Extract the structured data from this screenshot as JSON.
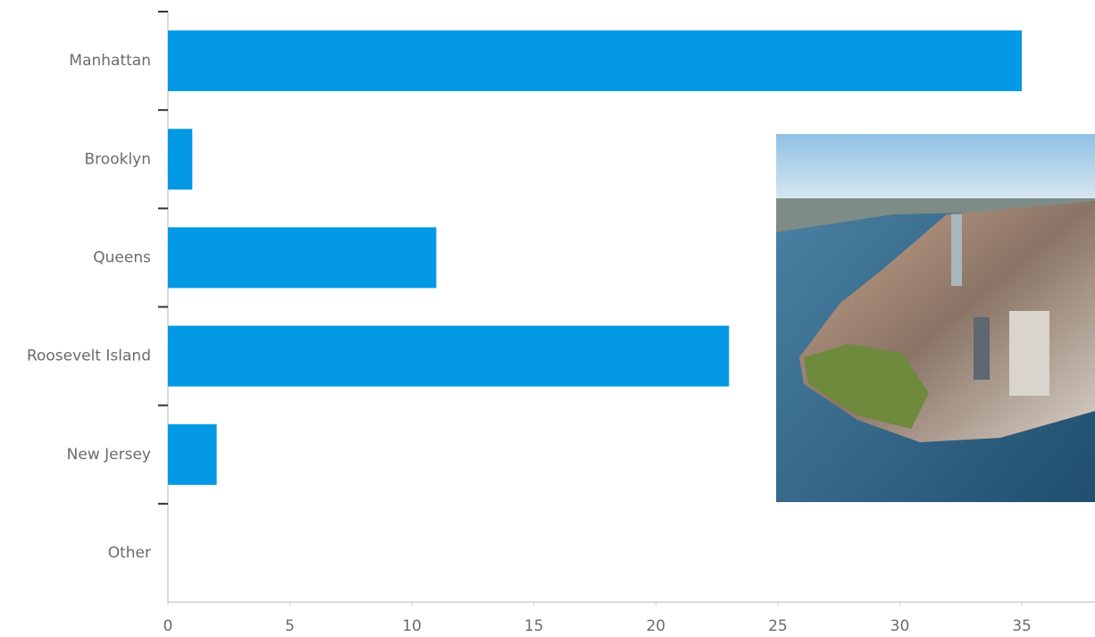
{
  "chart_data": {
    "type": "barh",
    "categories": [
      "Manhattan",
      "Brooklyn",
      "Queens",
      "Roosevelt Island",
      "New Jersey",
      "Other"
    ],
    "values": [
      35,
      1,
      11,
      23,
      2,
      0
    ],
    "color": "#0399e4",
    "xlim": [
      0,
      38
    ],
    "xticks": [
      0,
      5,
      10,
      15,
      20,
      25,
      30,
      35
    ],
    "grid": false
  }
}
